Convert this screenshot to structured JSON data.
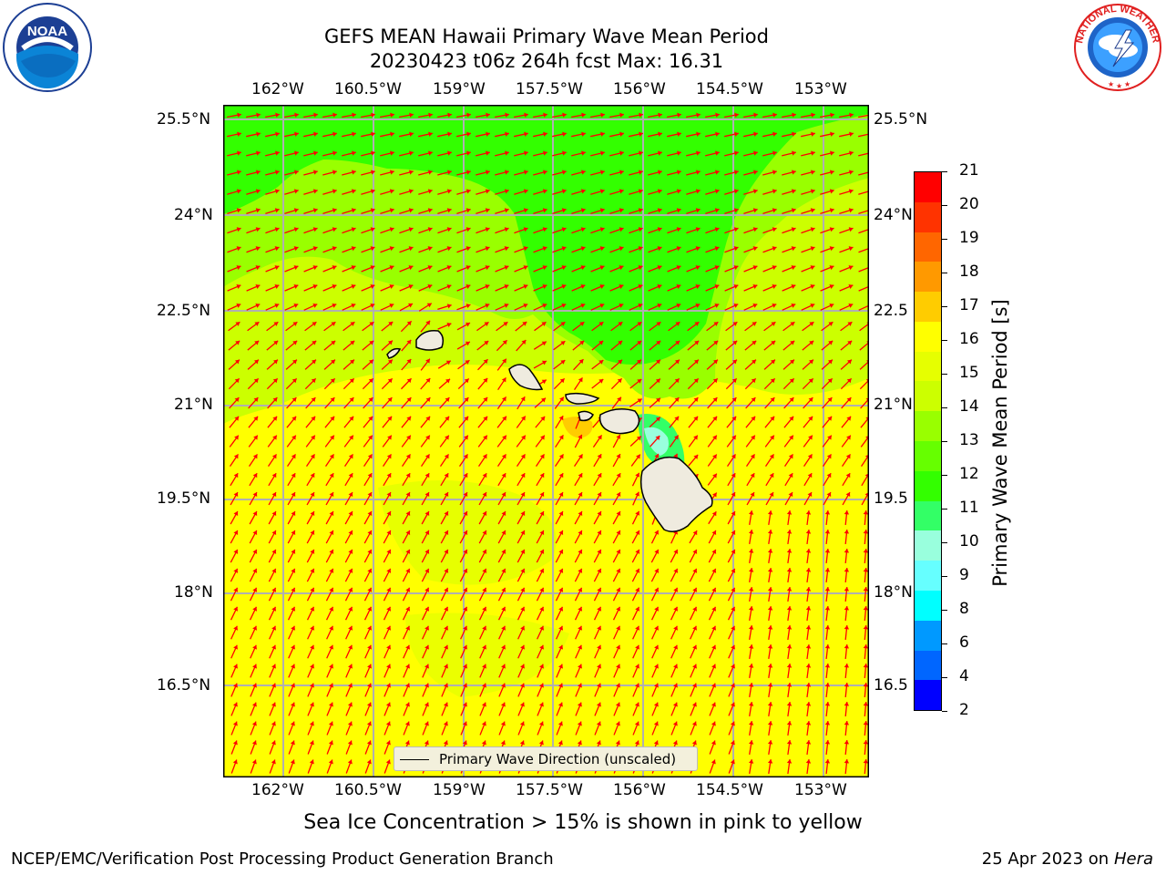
{
  "title": {
    "line1": "GEFS MEAN Hawaii Primary Wave Mean Period",
    "line2": "20230423 t06z 264h fcst   Max: 16.31"
  },
  "logos": {
    "left": {
      "name": "NOAA",
      "ring_text": "NATIONAL OCEANIC AND ATMOSPHERIC ADMINISTRATION · U.S. DEPARTMENT OF COMMERCE"
    },
    "right": {
      "name": "NATIONAL WEATHER SERVICE"
    }
  },
  "map": {
    "lon_labels": [
      "162°W",
      "160.5°W",
      "159°W",
      "157.5°W",
      "156°W",
      "154.5°W",
      "153°W"
    ],
    "lat_labels_left": [
      "25.5°N",
      "24°N",
      "22.5°N",
      "21°N",
      "19.5°N",
      "18°N",
      "16.5°N"
    ],
    "lat_labels_right": [
      "25.5°N",
      "24°N",
      "22.5",
      "21°N",
      "19.5",
      "18°N",
      "16.5"
    ],
    "field_colors": {
      "green": "#33ff00",
      "light_green": "#80ff00",
      "yellow_green": "#ccff00",
      "yellow": "#ffff00",
      "orange": "#ffcc00",
      "land": "#efebdf",
      "arrow": "#ff0000",
      "grid": "#b0b0b0"
    },
    "legend_label": "Primary Wave Direction (unscaled)"
  },
  "colorbar": {
    "label": "Primary Wave Mean Period [s]",
    "ticks": [
      "21",
      "20",
      "19",
      "18",
      "17",
      "16",
      "15",
      "14",
      "13",
      "12",
      "11",
      "10",
      "9",
      "8",
      "6",
      "4",
      "2"
    ],
    "colors_top_to_bottom": [
      "#ff0000",
      "#ff3300",
      "#ff6600",
      "#ff9900",
      "#ffcc00",
      "#ffff00",
      "#e6ff00",
      "#ccff00",
      "#99ff00",
      "#66ff00",
      "#33ff00",
      "#33ff66",
      "#99ffdd",
      "#66ffff",
      "#00ffff",
      "#0099ff",
      "#0066ff",
      "#0000ff"
    ]
  },
  "footer": {
    "sea_ice": "Sea Ice Concentration > 15% is shown in pink to yellow",
    "left": "NCEP/EMC/Verification Post Processing Product Generation Branch",
    "right_date": "25 Apr 2023 on ",
    "right_host": "Hera"
  }
}
